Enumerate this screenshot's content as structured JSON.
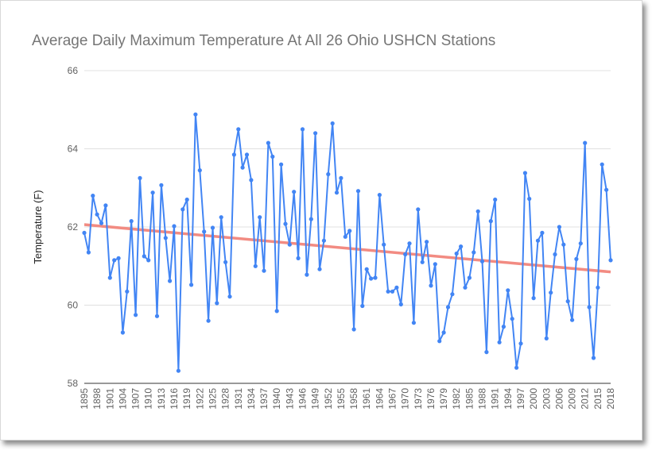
{
  "chart_data": {
    "type": "line",
    "title": "Average Daily Maximum Temperature At All 26 Ohio USHCN Stations",
    "xlabel": "",
    "ylabel": "Temperature (F)",
    "ylim": [
      58,
      66
    ],
    "y_ticks": [
      "58",
      "60",
      "62",
      "64",
      "66"
    ],
    "x_tick_labels": [
      "1895",
      "1898",
      "1901",
      "1904",
      "1907",
      "1910",
      "1913",
      "1916",
      "1919",
      "1922",
      "1925",
      "1928",
      "1931",
      "1934",
      "1937",
      "1940",
      "1943",
      "1946",
      "1949",
      "1952",
      "1955",
      "1958",
      "1961",
      "1964",
      "1967",
      "1970",
      "1973",
      "1976",
      "1979",
      "1982",
      "1985",
      "1988",
      "1991",
      "1994",
      "1997",
      "2000",
      "2003",
      "2006",
      "2009",
      "2012",
      "2015",
      "2018"
    ],
    "grid": "horizontal",
    "legend": "none",
    "colors": {
      "series": "#4285f4",
      "trend": "#f28b82",
      "grid": "#e0e0e0"
    },
    "series": [
      {
        "x_start": 1895,
        "x_end": 2018,
        "values": [
          61.85,
          61.35,
          62.8,
          62.32,
          62.1,
          62.55,
          60.7,
          61.15,
          61.2,
          59.3,
          60.35,
          62.15,
          59.75,
          63.25,
          61.25,
          61.15,
          62.88,
          59.72,
          63.07,
          61.72,
          60.62,
          62.02,
          58.32,
          62.45,
          62.7,
          60.52,
          64.88,
          63.45,
          61.88,
          59.6,
          61.98,
          60.05,
          62.25,
          61.1,
          60.22,
          63.85,
          64.5,
          63.52,
          63.85,
          63.2,
          61.0,
          62.25,
          60.88,
          64.15,
          63.8,
          59.85,
          63.6,
          62.08,
          61.55,
          62.9,
          61.2,
          64.5,
          60.78,
          62.2,
          64.4,
          60.92,
          61.65,
          63.35,
          64.65,
          62.88,
          63.25,
          61.75,
          61.9,
          59.38,
          62.92,
          59.98,
          60.92,
          60.68,
          60.7,
          62.82,
          61.55,
          60.35,
          60.35,
          60.45,
          60.02,
          61.3,
          61.58,
          59.55,
          62.45,
          61.1,
          61.62,
          60.5,
          61.05,
          59.08,
          59.3,
          59.95,
          60.28,
          61.32,
          61.5,
          60.45,
          60.7,
          61.35,
          62.4,
          61.12,
          58.8,
          62.15,
          62.7,
          59.05,
          59.45,
          60.38,
          59.65,
          58.4,
          59.02,
          63.38,
          62.72,
          60.18,
          61.65,
          61.85,
          59.15,
          60.32,
          61.3,
          62.0,
          61.55,
          60.1,
          59.62,
          61.18,
          61.58,
          64.15,
          59.95,
          58.65,
          60.45,
          63.6,
          62.95,
          61.15
        ]
      }
    ],
    "trendline": {
      "start": [
        1895,
        62.06
      ],
      "end": [
        2018,
        60.85
      ]
    }
  }
}
